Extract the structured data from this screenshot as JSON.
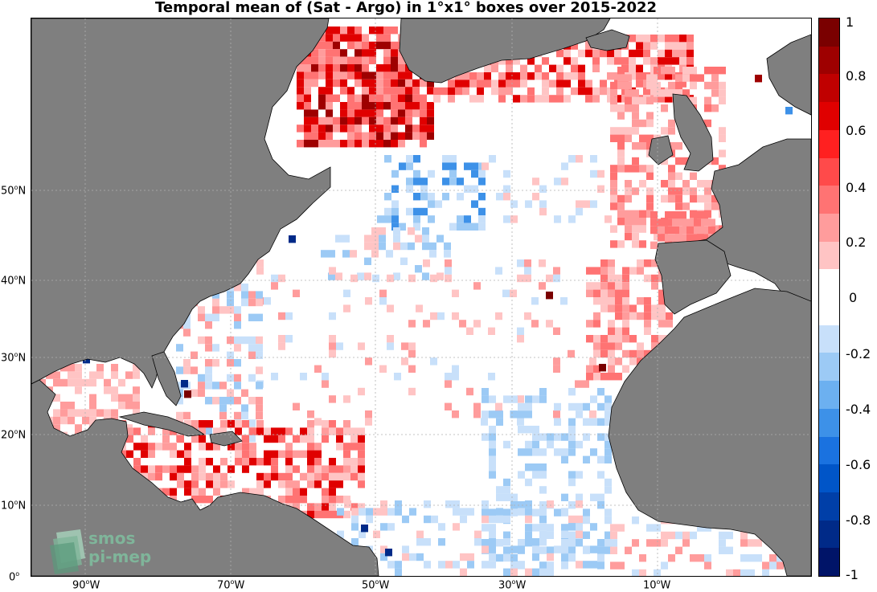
{
  "title": "Temporal mean of (Sat - Argo) in 1°x1° boxes over 2015-2022",
  "x_ticks": [
    {
      "label": "90",
      "suffix": "W"
    },
    {
      "label": "70",
      "suffix": "W"
    },
    {
      "label": "50",
      "suffix": "W"
    },
    {
      "label": "30",
      "suffix": "W"
    },
    {
      "label": "10",
      "suffix": "W"
    }
  ],
  "y_ticks": [
    {
      "label": "50",
      "suffix": "N"
    },
    {
      "label": "40",
      "suffix": "N"
    },
    {
      "label": "30",
      "suffix": "N"
    },
    {
      "label": "20",
      "suffix": "N"
    },
    {
      "label": "10",
      "suffix": "N"
    },
    {
      "label": "0",
      "suffix": ""
    }
  ],
  "colorbar": {
    "labels": [
      "1",
      "0.8",
      "0.6",
      "0.4",
      "0.2",
      "0",
      "-0.2",
      "-0.4",
      "-0.6",
      "-0.8",
      "-1"
    ],
    "colors": [
      "#7a0000",
      "#9e0000",
      "#c00000",
      "#e00000",
      "#ff2020",
      "#ff4a4a",
      "#ff7373",
      "#ff9c9c",
      "#ffc4c4",
      "#ffffff",
      "#ffffff",
      "#c8e0fa",
      "#9ccaf5",
      "#6cb0f0",
      "#3d91e8",
      "#1a72e0",
      "#0055c8",
      "#003fa8",
      "#002a88",
      "#001468"
    ]
  },
  "logo": {
    "line1": "smos",
    "line2": "pi-mep"
  },
  "land_color": "#7f7f7f"
}
